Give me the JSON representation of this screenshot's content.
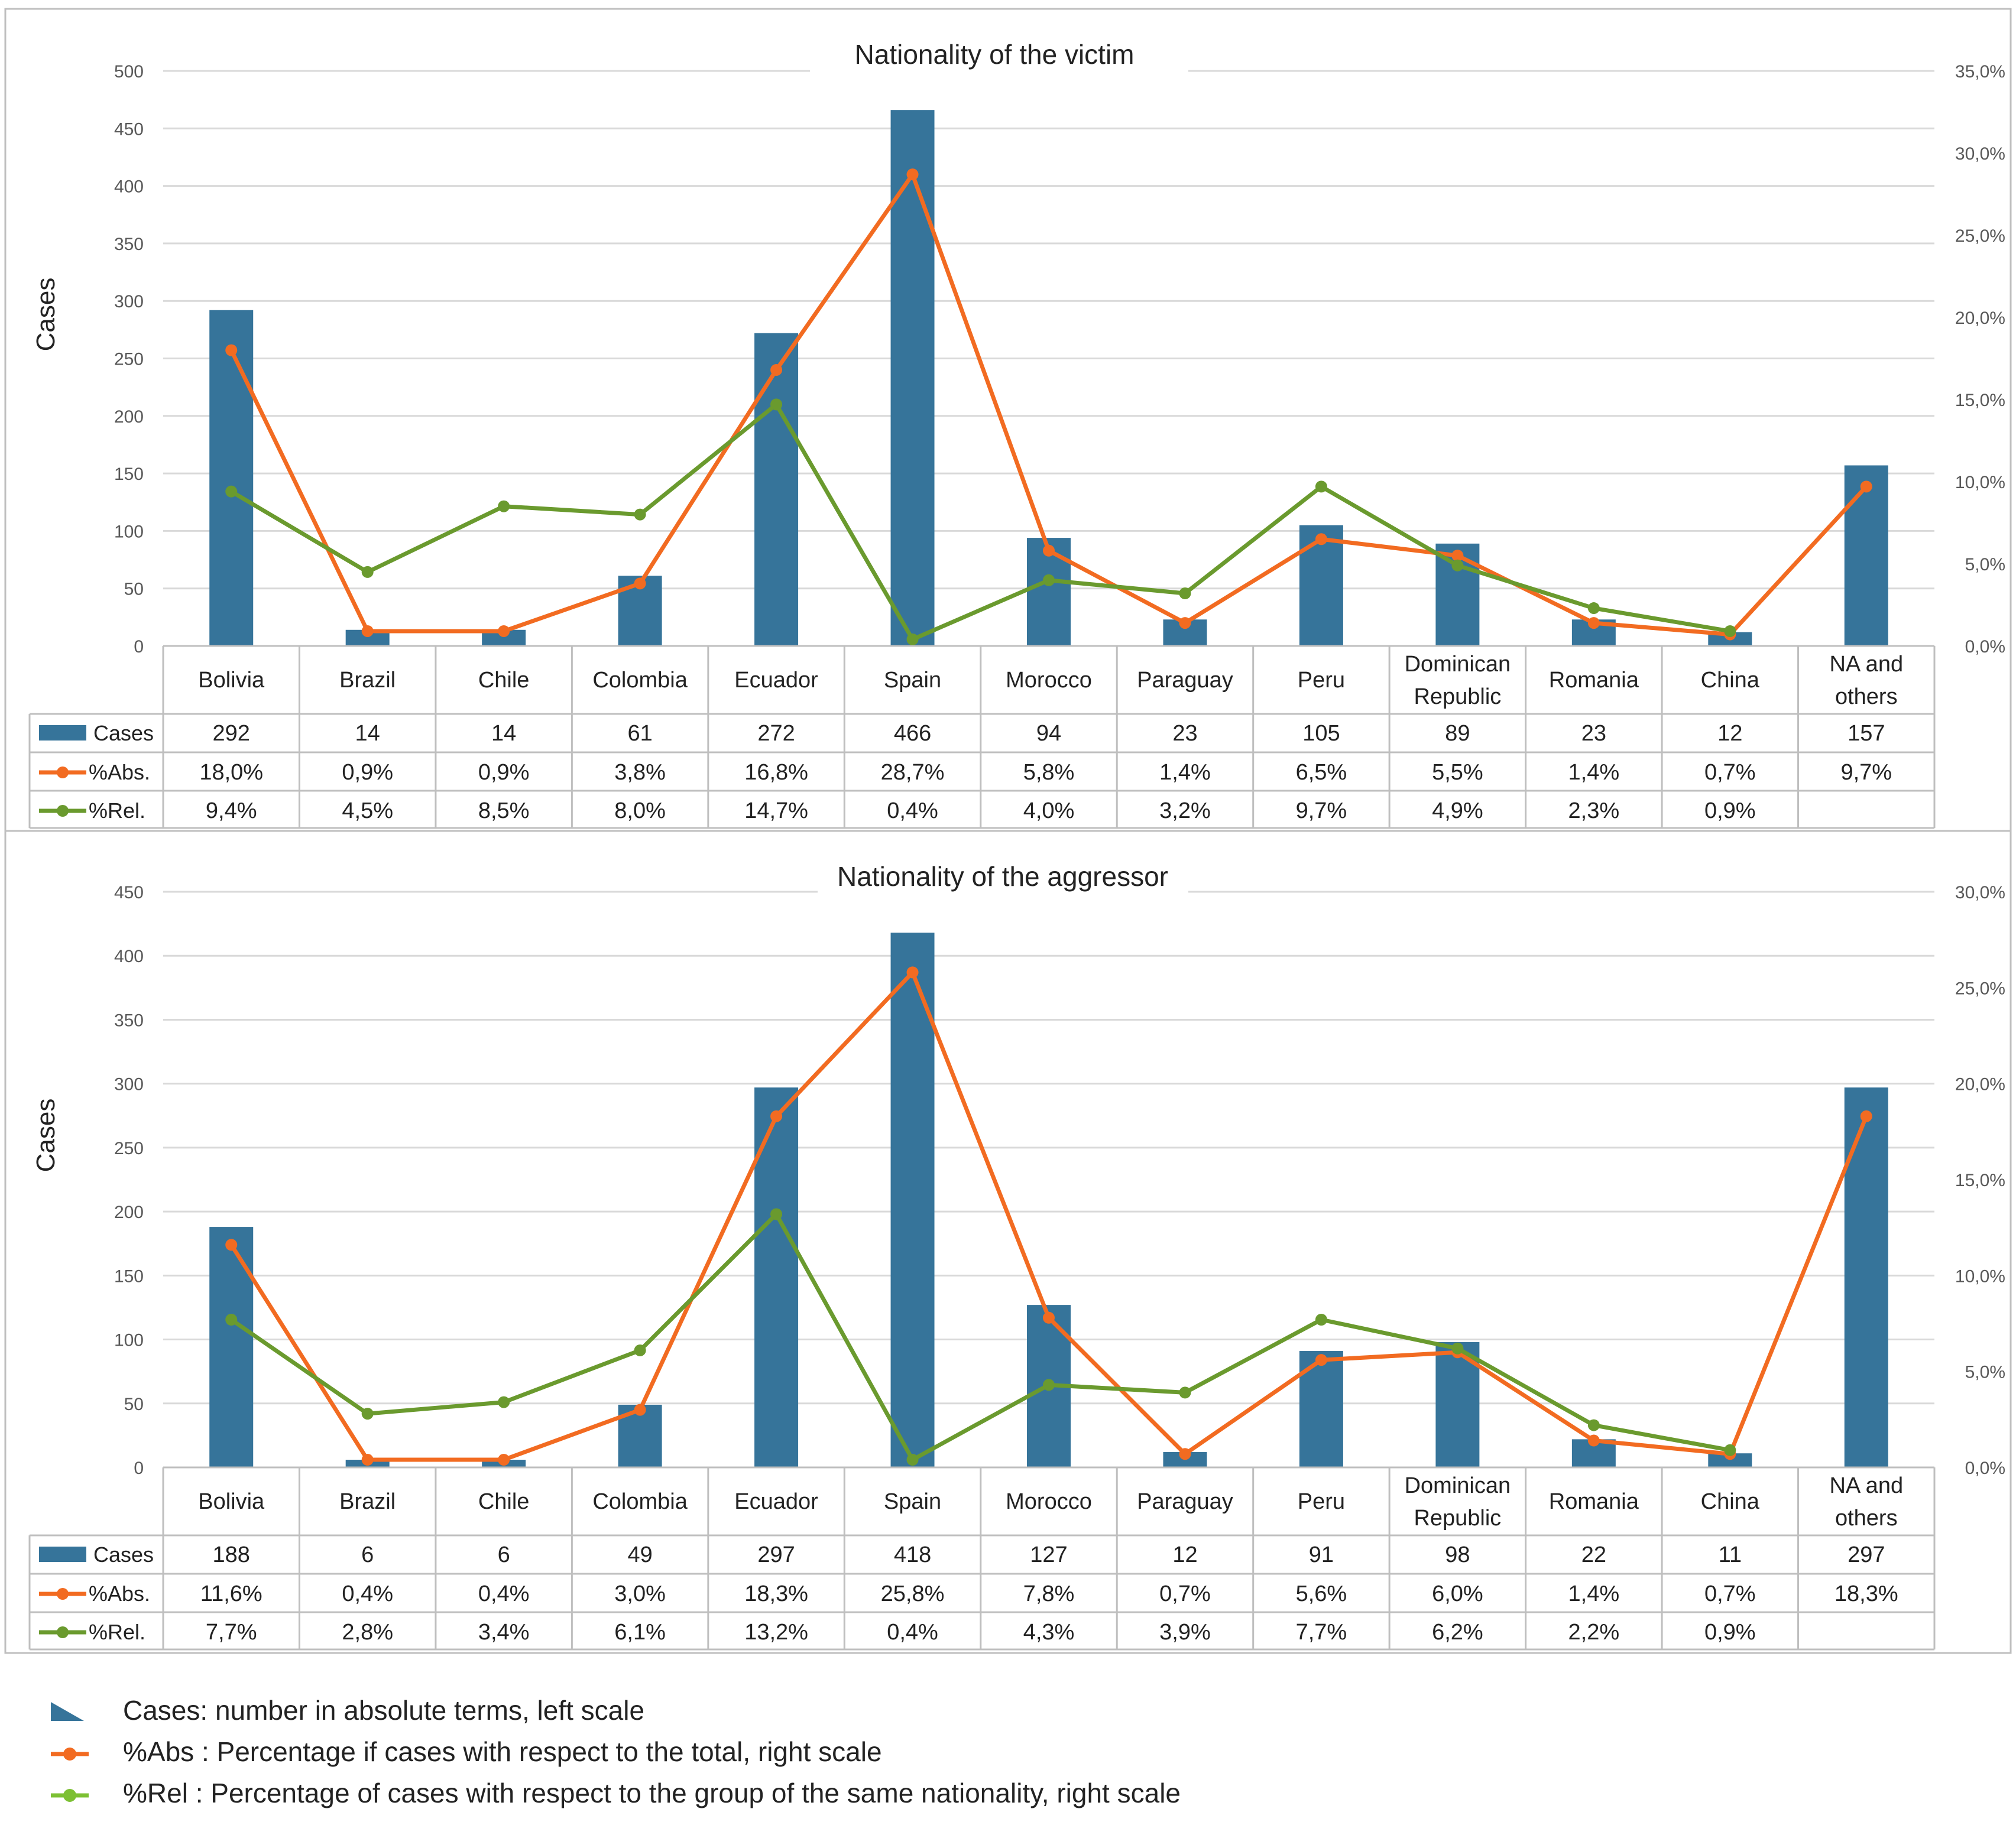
{
  "colors": {
    "bar": "#36749A",
    "abs": "#F26B21",
    "rel": "#6A9A2E",
    "grid": "#D9D9D9",
    "border": "#BFBFBF",
    "text": "#222222",
    "axis_text": "#595959"
  },
  "chart_data": [
    {
      "type": "bar",
      "title": "Nationality of the victim",
      "ylabel": "Cases",
      "ylim": [
        0,
        500
      ],
      "y_ticks": [
        "0",
        "50",
        "100",
        "150",
        "200",
        "250",
        "300",
        "350",
        "400",
        "450",
        "500"
      ],
      "y2lim": [
        0,
        35
      ],
      "y2_ticks": [
        "0,0%",
        "5,0%",
        "10,0%",
        "15,0%",
        "20,0%",
        "25,0%",
        "30,0%",
        "35,0%"
      ],
      "categories": [
        "Bolivia",
        "Brazil",
        "Chile",
        "Colombia",
        "Ecuador",
        "Spain",
        "Morocco",
        "Paraguay",
        "Peru",
        "Dominican Republic",
        "Romania",
        "China",
        "NA and others"
      ],
      "category_lines": [
        [
          "Bolivia"
        ],
        [
          "Brazil"
        ],
        [
          "Chile"
        ],
        [
          "Colombia"
        ],
        [
          "Ecuador"
        ],
        [
          "Spain"
        ],
        [
          "Morocco"
        ],
        [
          "Paraguay"
        ],
        [
          "Peru"
        ],
        [
          "Dominican",
          "Republic"
        ],
        [
          "Romania"
        ],
        [
          "China"
        ],
        [
          "NA and",
          "others"
        ]
      ],
      "grid": true,
      "series": [
        {
          "name": "Cases",
          "kind": "bar",
          "axis": "left",
          "values": [
            292,
            14,
            14,
            61,
            272,
            466,
            94,
            23,
            105,
            89,
            23,
            12,
            157
          ],
          "labels": [
            "292",
            "14",
            "14",
            "61",
            "272",
            "466",
            "94",
            "23",
            "105",
            "89",
            "23",
            "12",
            "157"
          ]
        },
        {
          "name": "%Abs.",
          "kind": "line",
          "axis": "right",
          "values": [
            18.0,
            0.9,
            0.9,
            3.8,
            16.8,
            28.7,
            5.8,
            1.4,
            6.5,
            5.5,
            1.4,
            0.7,
            9.7
          ],
          "labels": [
            "18,0%",
            "0,9%",
            "0,9%",
            "3,8%",
            "16,8%",
            "28,7%",
            "5,8%",
            "1,4%",
            "6,5%",
            "5,5%",
            "1,4%",
            "0,7%",
            "9,7%"
          ]
        },
        {
          "name": "%Rel.",
          "kind": "line",
          "axis": "right",
          "values": [
            9.4,
            4.5,
            8.5,
            8.0,
            14.7,
            0.4,
            4.0,
            3.2,
            9.7,
            4.9,
            2.3,
            0.9,
            null
          ],
          "labels": [
            "9,4%",
            "4,5%",
            "8,5%",
            "8,0%",
            "14,7%",
            "0,4%",
            "4,0%",
            "3,2%",
            "9,7%",
            "4,9%",
            "2,3%",
            "0,9%",
            ""
          ]
        }
      ]
    },
    {
      "type": "bar",
      "title": "Nationality of the aggressor",
      "ylabel": "Cases",
      "ylim": [
        0,
        450
      ],
      "y_ticks": [
        "0",
        "50",
        "100",
        "150",
        "200",
        "250",
        "300",
        "350",
        "400",
        "450"
      ],
      "y2lim": [
        0,
        30
      ],
      "y2_ticks": [
        "0,0%",
        "5,0%",
        "10,0%",
        "15,0%",
        "20,0%",
        "25,0%",
        "30,0%"
      ],
      "categories": [
        "Bolivia",
        "Brazil",
        "Chile",
        "Colombia",
        "Ecuador",
        "Spain",
        "Morocco",
        "Paraguay",
        "Peru",
        "Dominican Republic",
        "Romania",
        "China",
        "NA and others"
      ],
      "category_lines": [
        [
          "Bolivia"
        ],
        [
          "Brazil"
        ],
        [
          "Chile"
        ],
        [
          "Colombia"
        ],
        [
          "Ecuador"
        ],
        [
          "Spain"
        ],
        [
          "Morocco"
        ],
        [
          "Paraguay"
        ],
        [
          "Peru"
        ],
        [
          "Dominican",
          "Republic"
        ],
        [
          "Romania"
        ],
        [
          "China"
        ],
        [
          "NA and",
          "others"
        ]
      ],
      "grid": true,
      "series": [
        {
          "name": "Cases",
          "kind": "bar",
          "axis": "left",
          "values": [
            188,
            6,
            6,
            49,
            297,
            418,
            127,
            12,
            91,
            98,
            22,
            11,
            297
          ],
          "labels": [
            "188",
            "6",
            "6",
            "49",
            "297",
            "418",
            "127",
            "12",
            "91",
            "98",
            "22",
            "11",
            "297"
          ]
        },
        {
          "name": "%Abs.",
          "kind": "line",
          "axis": "right",
          "values": [
            11.6,
            0.4,
            0.4,
            3.0,
            18.3,
            25.8,
            7.8,
            0.7,
            5.6,
            6.0,
            1.4,
            0.7,
            18.3
          ],
          "labels": [
            "11,6%",
            "0,4%",
            "0,4%",
            "3,0%",
            "18,3%",
            "25,8%",
            "7,8%",
            "0,7%",
            "5,6%",
            "6,0%",
            "1,4%",
            "0,7%",
            "18,3%"
          ]
        },
        {
          "name": "%Rel.",
          "kind": "line",
          "axis": "right",
          "values": [
            7.7,
            2.8,
            3.4,
            6.1,
            13.2,
            0.4,
            4.3,
            3.9,
            7.7,
            6.2,
            2.2,
            0.9,
            null
          ],
          "labels": [
            "7,7%",
            "2,8%",
            "3,4%",
            "6,1%",
            "13,2%",
            "0,4%",
            "4,3%",
            "3,9%",
            "7,7%",
            "6,2%",
            "2,2%",
            "0,9%",
            ""
          ]
        }
      ]
    }
  ],
  "legend": [
    {
      "key": "Cases",
      "text": "Cases: number in absolute terms, left scale",
      "kind": "bar"
    },
    {
      "key": "%Abs",
      "text": "%Abs : Percentage if cases with respect to the total, right scale",
      "kind": "abs"
    },
    {
      "key": "%Rel",
      "text": "%Rel : Percentage of cases with respect to the group of the same nationality, right scale",
      "kind": "rel"
    }
  ]
}
